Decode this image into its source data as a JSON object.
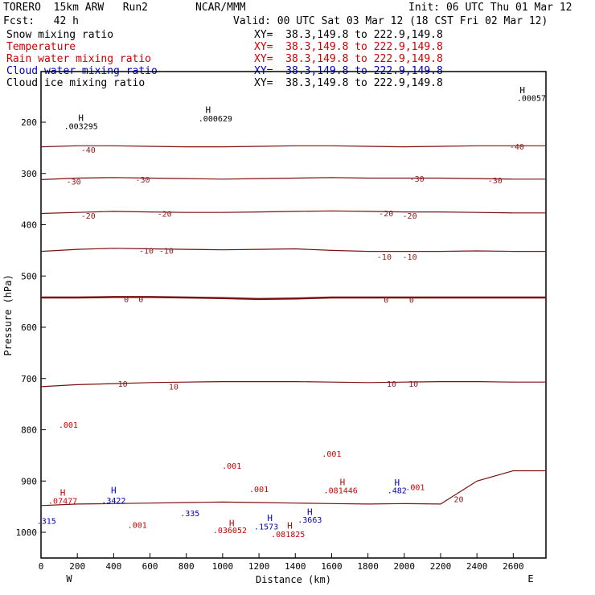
{
  "header": {
    "model": "TORERO  15km ARW   Run2",
    "org": "NCAR/MMM",
    "init": "Init: 06 UTC Thu 01 Mar 12",
    "fcst": "Fcst:   42 h",
    "valid": "Valid: 00 UTC Sat 03 Mar 12 (18 CST Fri 02 Mar 12)"
  },
  "legend": [
    {
      "label": "Snow mixing ratio",
      "xy": "XY=  38.3,149.8 to 222.9,149.8",
      "color": "#000000"
    },
    {
      "label": "Temperature",
      "xy": "XY=  38.3,149.8 to 222.9,149.8",
      "color": "#cc0000"
    },
    {
      "label": "Rain water mixing ratio",
      "xy": "XY=  38.3,149.8 to 222.9,149.8",
      "color": "#cc0000"
    },
    {
      "label": "Cloud water mixing ratio",
      "xy": "XY=  38.3,149.8 to 222.9,149.8",
      "color": "#0000bb"
    },
    {
      "label": "Cloud ice mixing ratio",
      "xy": "XY=  38.3,149.8 to 222.9,149.8",
      "color": "#000000"
    }
  ],
  "chart_data": {
    "type": "line",
    "xlabel": "Distance (km)",
    "ylabel": "Pressure (hPa)",
    "x_ticks": [
      0,
      200,
      400,
      600,
      800,
      1000,
      1200,
      1400,
      1600,
      1800,
      2000,
      2200,
      2400,
      2600
    ],
    "y_ticks": [
      200,
      300,
      400,
      500,
      600,
      700,
      800,
      900,
      1000
    ],
    "xlim": [
      0,
      2780
    ],
    "ylim": [
      1050,
      100
    ],
    "west_label": "W",
    "east_label": "E",
    "isotherms": [
      {
        "label": "-40",
        "p": [
          248,
          246,
          246,
          247,
          248,
          248,
          247,
          246,
          246,
          247,
          248,
          247,
          246,
          246
        ]
      },
      {
        "label": "-30",
        "p": [
          312,
          309,
          308,
          309,
          310,
          311,
          310,
          309,
          308,
          309,
          309,
          309,
          310,
          311
        ]
      },
      {
        "label": "-20",
        "p": [
          378,
          376,
          374,
          375,
          376,
          376,
          375,
          374,
          373,
          374,
          375,
          375,
          376,
          377
        ]
      },
      {
        "label": "-10",
        "p": [
          452,
          448,
          446,
          447,
          448,
          449,
          448,
          447,
          450,
          452,
          452,
          452,
          451,
          452
        ]
      },
      {
        "label": "0",
        "p": [
          542,
          542,
          541,
          541,
          542,
          543,
          545,
          544,
          542,
          542,
          542,
          542,
          542,
          542
        ]
      },
      {
        "label": "10",
        "p": [
          716,
          712,
          710,
          708,
          707,
          706,
          706,
          706,
          707,
          708,
          707,
          706,
          706,
          707
        ]
      },
      {
        "label": "20",
        "p": [
          948,
          945,
          944,
          943,
          942,
          941,
          942,
          943,
          944,
          945,
          944,
          945,
          900,
          880
        ]
      }
    ],
    "contour_labels": [
      {
        "text": "-40",
        "x": 260,
        "p": 253,
        "color": "#8b1a1a"
      },
      {
        "text": "-40",
        "x": 2620,
        "p": 247,
        "color": "#8b1a1a"
      },
      {
        "text": "-30",
        "x": 180,
        "p": 315,
        "color": "#8b1a1a"
      },
      {
        "text": "-30",
        "x": 560,
        "p": 311,
        "color": "#8b1a1a"
      },
      {
        "text": "-30",
        "x": 2070,
        "p": 310,
        "color": "#8b1a1a"
      },
      {
        "text": "-30",
        "x": 2500,
        "p": 313,
        "color": "#8b1a1a"
      },
      {
        "text": "-20",
        "x": 260,
        "p": 382,
        "color": "#8b1a1a"
      },
      {
        "text": "-20",
        "x": 680,
        "p": 378,
        "color": "#8b1a1a"
      },
      {
        "text": "-20",
        "x": 1900,
        "p": 377,
        "color": "#8b1a1a"
      },
      {
        "text": "-20",
        "x": 2030,
        "p": 382,
        "color": "#8b1a1a"
      },
      {
        "text": "-10",
        "x": 580,
        "p": 450,
        "color": "#8b1a1a"
      },
      {
        "text": "-10",
        "x": 690,
        "p": 450,
        "color": "#8b1a1a"
      },
      {
        "text": "-10",
        "x": 1890,
        "p": 462,
        "color": "#8b1a1a"
      },
      {
        "text": "-10",
        "x": 2030,
        "p": 462,
        "color": "#8b1a1a"
      },
      {
        "text": "0",
        "x": 470,
        "p": 545,
        "color": "#8b1a1a"
      },
      {
        "text": "0",
        "x": 550,
        "p": 545,
        "color": "#8b1a1a"
      },
      {
        "text": "0",
        "x": 1900,
        "p": 546,
        "color": "#8b1a1a"
      },
      {
        "text": "0",
        "x": 2040,
        "p": 546,
        "color": "#8b1a1a"
      },
      {
        "text": "10",
        "x": 450,
        "p": 710,
        "color": "#8b1a1a"
      },
      {
        "text": "10",
        "x": 730,
        "p": 715,
        "color": "#8b1a1a"
      },
      {
        "text": "10",
        "x": 1930,
        "p": 710,
        "color": "#8b1a1a"
      },
      {
        "text": "10",
        "x": 2050,
        "p": 710,
        "color": "#8b1a1a"
      },
      {
        "text": "20",
        "x": 2300,
        "p": 935,
        "color": "#8b1a1a"
      },
      {
        "text": ".001",
        "x": 150,
        "p": 790,
        "color": "#cc0000"
      },
      {
        "text": ".001",
        "x": 1050,
        "p": 870,
        "color": "#cc0000"
      },
      {
        "text": ".001",
        "x": 1200,
        "p": 915,
        "color": "#cc0000"
      },
      {
        "text": ".001",
        "x": 1600,
        "p": 846,
        "color": "#cc0000"
      },
      {
        "text": ".001",
        "x": 530,
        "p": 985,
        "color": "#cc0000"
      },
      {
        "text": ".001",
        "x": 2060,
        "p": 911,
        "color": "#cc0000"
      },
      {
        "text": ".07477",
        "x": 120,
        "p": 938,
        "color": "#cc0000"
      },
      {
        "text": ".081446",
        "x": 1650,
        "p": 918,
        "color": "#cc0000"
      },
      {
        "text": ".036052",
        "x": 1040,
        "p": 995,
        "color": "#cc0000"
      },
      {
        "text": ".081825",
        "x": 1360,
        "p": 1003,
        "color": "#cc0000"
      },
      {
        "text": ".3422",
        "x": 400,
        "p": 937,
        "color": "#0000bb"
      },
      {
        "text": ".315",
        "x": 30,
        "p": 977,
        "color": "#0000bb"
      },
      {
        "text": ".335",
        "x": 820,
        "p": 962,
        "color": "#0000bb"
      },
      {
        "text": ".1573",
        "x": 1240,
        "p": 988,
        "color": "#0000bb"
      },
      {
        "text": ".3663",
        "x": 1480,
        "p": 975,
        "color": "#0000bb"
      },
      {
        "text": ".482",
        "x": 1960,
        "p": 918,
        "color": "#0000bb"
      },
      {
        "text": ".003295",
        "x": 220,
        "p": 207,
        "color": "#000000"
      },
      {
        "text": ".000629",
        "x": 960,
        "p": 192,
        "color": "#000000"
      },
      {
        "text": ".00057",
        "x": 2700,
        "p": 152,
        "color": "#000000"
      }
    ],
    "highs": [
      {
        "x": 220,
        "p": 191,
        "color": "#000000"
      },
      {
        "x": 920,
        "p": 176,
        "color": "#000000"
      },
      {
        "x": 2650,
        "p": 137,
        "color": "#000000"
      },
      {
        "x": 120,
        "p": 922,
        "color": "#cc0000"
      },
      {
        "x": 1660,
        "p": 902,
        "color": "#cc0000"
      },
      {
        "x": 1050,
        "p": 982,
        "color": "#cc0000"
      },
      {
        "x": 1370,
        "p": 987,
        "color": "#cc0000"
      },
      {
        "x": 400,
        "p": 918,
        "color": "#0000bb"
      },
      {
        "x": 1260,
        "p": 972,
        "color": "#0000bb"
      },
      {
        "x": 1480,
        "p": 960,
        "color": "#0000bb"
      },
      {
        "x": 1960,
        "p": 903,
        "color": "#0000bb"
      }
    ]
  }
}
